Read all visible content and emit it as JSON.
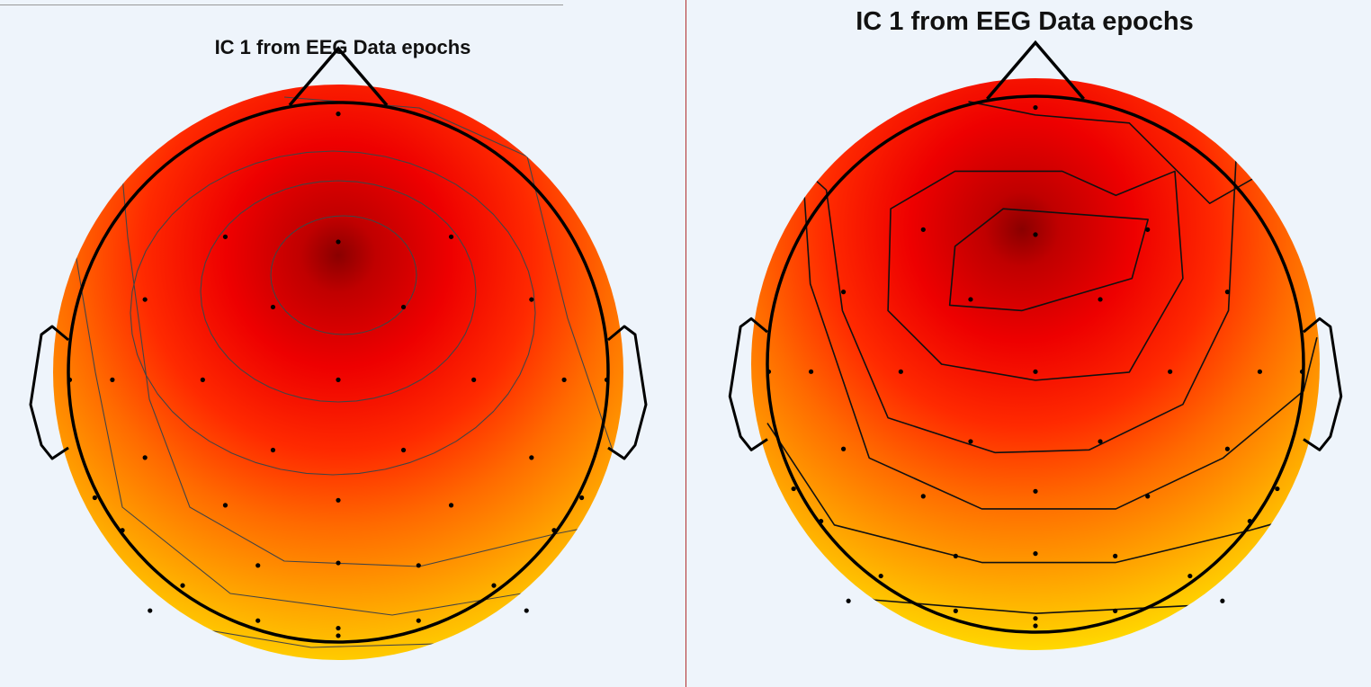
{
  "chart_data": [
    {
      "type": "heatmap",
      "title": "IC 1 from EEG Data epochs",
      "colormap": [
        "#ffff00",
        "#ffd000",
        "#ffa000",
        "#ff6a00",
        "#ff2a00",
        "#ee0000",
        "#c00000",
        "#8a0000"
      ],
      "contours": "thin",
      "electrodes": 37
    },
    {
      "type": "heatmap",
      "title": "IC 1 from EEG Data epochs",
      "colormap": [
        "#ffff00",
        "#ffd000",
        "#ffa000",
        "#ff6a00",
        "#ff2a00",
        "#ee0000",
        "#c00000",
        "#8a0000"
      ],
      "contours": "bold",
      "electrodes": 37
    }
  ],
  "colors": {
    "background": "#eef4fb",
    "divider": "#b03030"
  }
}
